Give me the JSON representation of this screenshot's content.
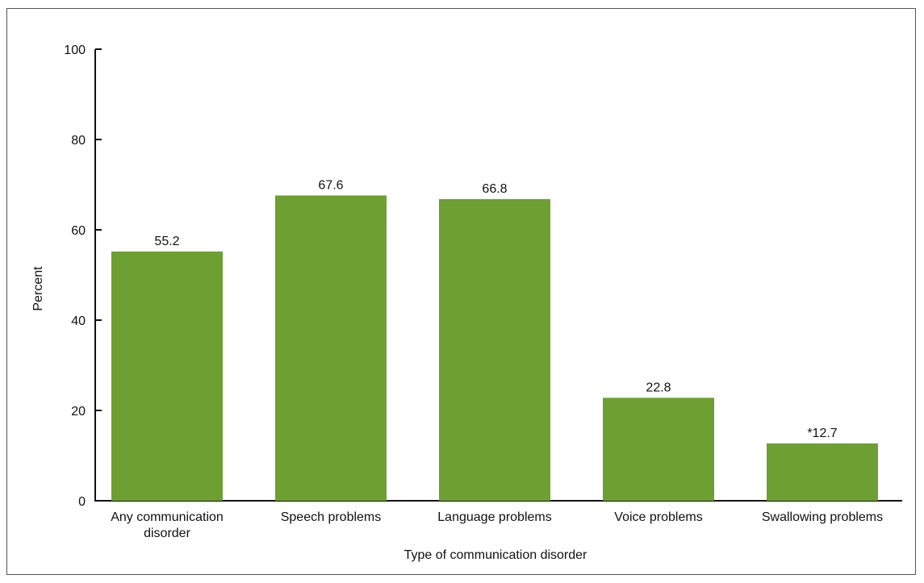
{
  "chart_data": {
    "type": "bar",
    "title": "",
    "xlabel": "Type of communication disorder",
    "ylabel": "Percent",
    "ylim": [
      0,
      100
    ],
    "yticks": [
      "0",
      "20",
      "40",
      "60",
      "80",
      "100"
    ],
    "categories": [
      [
        "Any communication",
        "disorder"
      ],
      [
        "Speech problems"
      ],
      [
        "Language problems"
      ],
      [
        "Voice problems"
      ],
      [
        "Swallowing problems"
      ]
    ],
    "values": [
      55.2,
      67.6,
      66.8,
      22.8,
      12.7
    ],
    "value_labels": [
      "55.2",
      "67.6",
      "66.8",
      "22.8",
      "*12.7"
    ],
    "grid": false,
    "legend": "none",
    "bar_color": "#6e9f32",
    "axis_color": "#111111"
  }
}
